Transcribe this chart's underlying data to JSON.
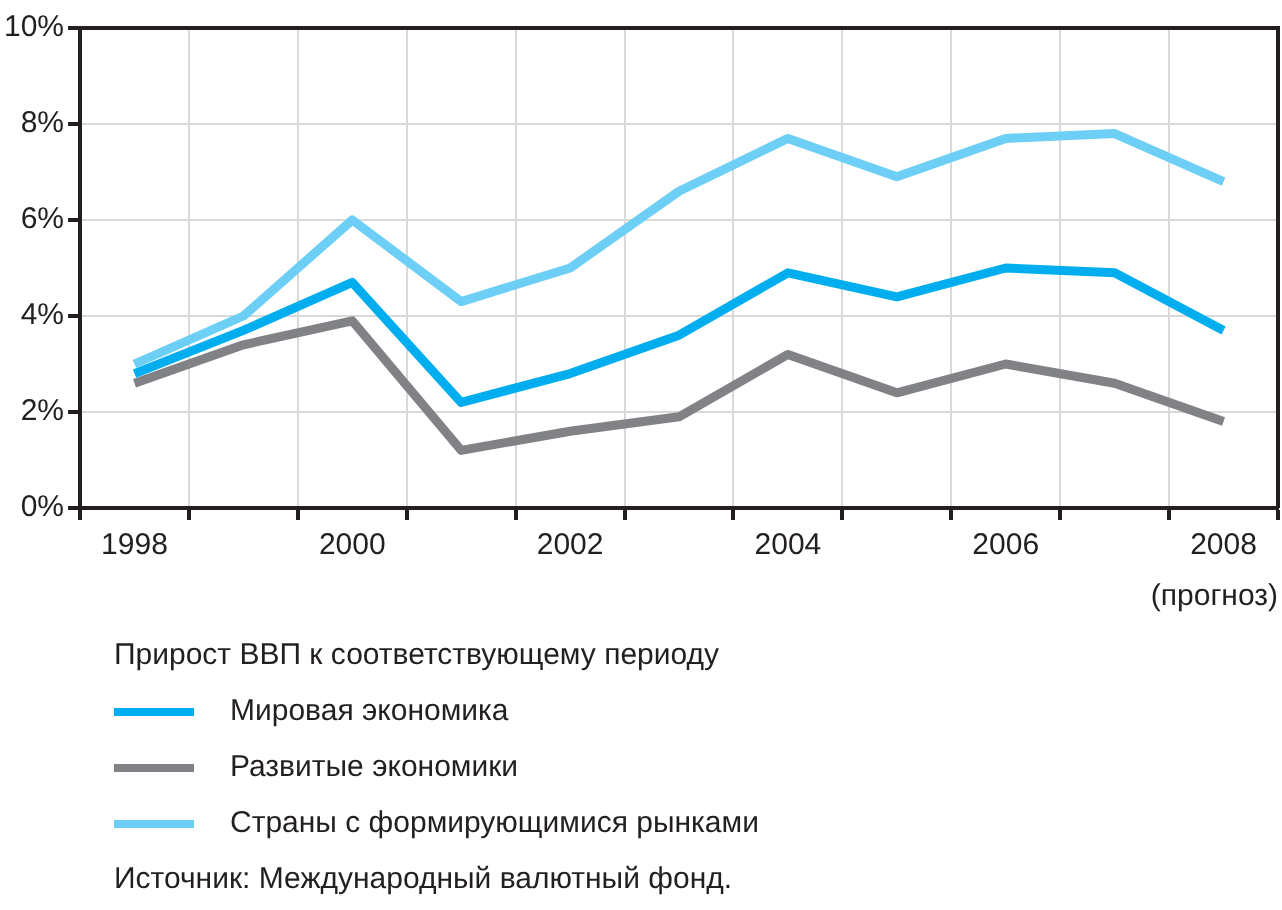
{
  "chart_data": {
    "type": "line",
    "legend_title": "Прирост ВВП к соответствующему периоду",
    "categories": [
      "1998",
      null,
      "2000",
      null,
      "2002",
      null,
      "2004",
      null,
      "2006",
      null,
      "2008"
    ],
    "series": [
      {
        "name": "Мировая экономика",
        "color": "#00aeef",
        "values": [
          2.8,
          3.7,
          4.7,
          2.2,
          2.8,
          3.6,
          4.9,
          4.4,
          5.0,
          4.9,
          3.7
        ]
      },
      {
        "name": "Развитые экономики",
        "color": "#808285",
        "values": [
          2.6,
          3.4,
          3.9,
          1.2,
          1.6,
          1.9,
          3.2,
          2.4,
          3.0,
          2.6,
          1.8
        ]
      },
      {
        "name": "Страны с формирующимися рынками",
        "color": "#6dcff6",
        "values": [
          3.0,
          4.0,
          6.0,
          4.3,
          5.0,
          6.6,
          7.7,
          6.9,
          7.7,
          7.8,
          6.8
        ]
      }
    ],
    "ylim": [
      0,
      10
    ],
    "yticks": [
      {
        "value": 0,
        "label": "0%"
      },
      {
        "value": 2,
        "label": "2%"
      },
      {
        "value": 4,
        "label": "4%"
      },
      {
        "value": 6,
        "label": "6%"
      },
      {
        "value": 8,
        "label": "8%"
      },
      {
        "value": 10,
        "label": "10%"
      }
    ],
    "grid": true,
    "legend": "bottom",
    "marker": "none",
    "line_style": "solid",
    "annotations": [
      "(прогноз)",
      "Источник: Международный валютный фонд."
    ]
  }
}
